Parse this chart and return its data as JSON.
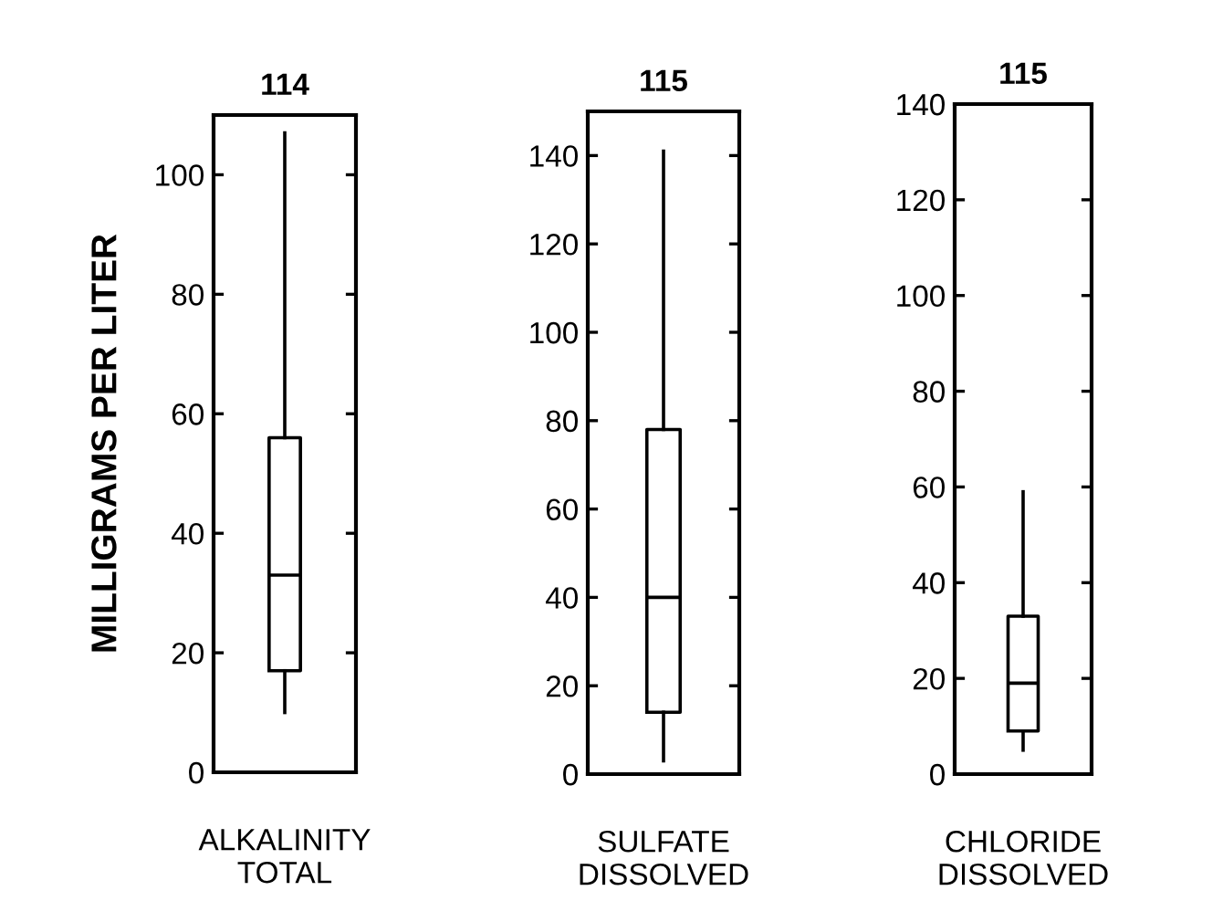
{
  "chart_data": [
    {
      "type": "box",
      "title": "114",
      "ylabel": "MILLIGRAMS PER LITER",
      "categories": [
        "ALKALINITY\nTOTAL"
      ],
      "ylim": [
        0,
        110
      ],
      "yticks": [
        0,
        20,
        40,
        60,
        80,
        100
      ],
      "boxes": [
        {
          "low": 10,
          "q1": 17,
          "median": 33,
          "q3": 56,
          "high": 107
        }
      ]
    },
    {
      "type": "box",
      "title": "115",
      "categories": [
        "SULFATE\nDISSOLVED"
      ],
      "ylim": [
        0,
        150
      ],
      "yticks": [
        0,
        20,
        40,
        60,
        80,
        100,
        120,
        140
      ],
      "boxes": [
        {
          "low": 3,
          "q1": 14,
          "median": 40,
          "q3": 78,
          "high": 141
        }
      ]
    },
    {
      "type": "box",
      "title": "115",
      "categories": [
        "CHLORIDE\nDISSOLVED"
      ],
      "ylim": [
        0,
        140
      ],
      "yticks": [
        0,
        20,
        40,
        60,
        80,
        100,
        120,
        140
      ],
      "boxes": [
        {
          "low": 5,
          "q1": 9,
          "median": 19,
          "q3": 33,
          "high": 59
        }
      ]
    }
  ]
}
